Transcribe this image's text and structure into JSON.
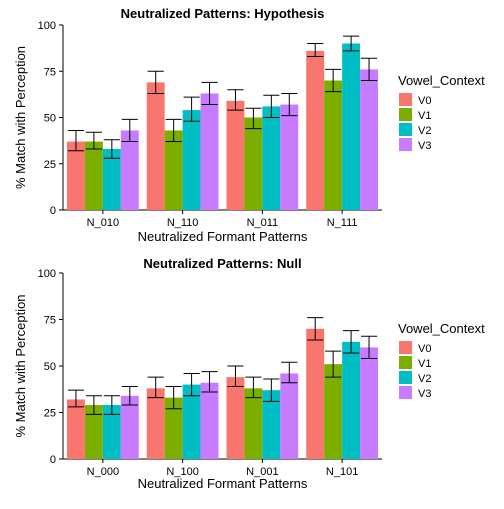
{
  "chart_data": [
    {
      "type": "bar",
      "title": "Neutralized Patterns: Hypothesis",
      "xlabel": "Neutralized Formant Patterns",
      "ylabel": "% Match with Perception",
      "ylim": [
        0,
        100
      ],
      "yticks": [
        "0",
        "25",
        "50",
        "75",
        "100"
      ],
      "categories": [
        "N_010",
        "N_110",
        "N_011",
        "N_111"
      ],
      "grid": false,
      "legend": {
        "title": "Vowel_Context",
        "placement": "right",
        "entries": [
          "V0",
          "V1",
          "V2",
          "V3"
        ]
      },
      "series": [
        {
          "name": "V0",
          "color": "#F8766D",
          "values": [
            37,
            69,
            59,
            86
          ],
          "errors": [
            [
              32,
              43
            ],
            [
              63,
              75
            ],
            [
              54,
              65
            ],
            [
              83,
              90
            ]
          ]
        },
        {
          "name": "V1",
          "color": "#7CAE00",
          "values": [
            37,
            43,
            50,
            70
          ],
          "errors": [
            [
              33,
              42
            ],
            [
              37,
              49
            ],
            [
              44,
              55
            ],
            [
              64,
              76
            ]
          ]
        },
        {
          "name": "V2",
          "color": "#00BFC4",
          "values": [
            33,
            54,
            56,
            90
          ],
          "errors": [
            [
              28,
              38
            ],
            [
              48,
              61
            ],
            [
              50,
              62
            ],
            [
              86,
              94
            ]
          ]
        },
        {
          "name": "V3",
          "color": "#C77CFF",
          "values": [
            43,
            63,
            57,
            76
          ],
          "errors": [
            [
              37,
              49
            ],
            [
              57,
              69
            ],
            [
              51,
              63
            ],
            [
              70,
              82
            ]
          ]
        }
      ]
    },
    {
      "type": "bar",
      "title": "Neutralized Patterns: Null",
      "xlabel": "Neutralized Formant Patterns",
      "ylabel": "% Match with Perception",
      "ylim": [
        0,
        100
      ],
      "yticks": [
        "0",
        "25",
        "50",
        "75",
        "100"
      ],
      "categories": [
        "N_000",
        "N_100",
        "N_001",
        "N_101"
      ],
      "grid": false,
      "legend": {
        "title": "Vowel_Context",
        "placement": "right",
        "entries": [
          "V0",
          "V1",
          "V2",
          "V3"
        ]
      },
      "series": [
        {
          "name": "V0",
          "color": "#F8766D",
          "values": [
            32,
            38,
            44,
            70
          ],
          "errors": [
            [
              28,
              37
            ],
            [
              33,
              44
            ],
            [
              39,
              50
            ],
            [
              64,
              76
            ]
          ]
        },
        {
          "name": "V1",
          "color": "#7CAE00",
          "values": [
            29,
            33,
            38,
            51
          ],
          "errors": [
            [
              24,
              34
            ],
            [
              27,
              39
            ],
            [
              33,
              44
            ],
            [
              44,
              58
            ]
          ]
        },
        {
          "name": "V2",
          "color": "#00BFC4",
          "values": [
            29,
            40,
            37,
            63
          ],
          "errors": [
            [
              24,
              34
            ],
            [
              34,
              46
            ],
            [
              31,
              43
            ],
            [
              57,
              69
            ]
          ]
        },
        {
          "name": "V3",
          "color": "#C77CFF",
          "values": [
            34,
            41,
            46,
            60
          ],
          "errors": [
            [
              29,
              39
            ],
            [
              36,
              47
            ],
            [
              41,
              52
            ],
            [
              54,
              66
            ]
          ]
        }
      ]
    }
  ]
}
